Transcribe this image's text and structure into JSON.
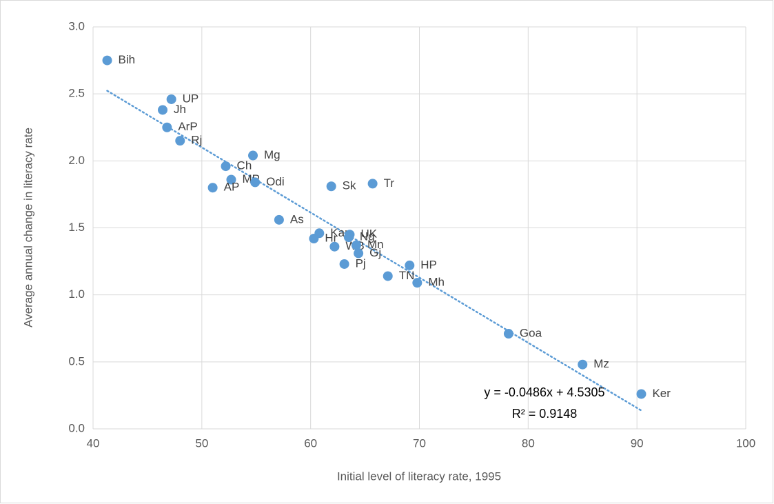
{
  "chart_data": {
    "type": "scatter",
    "x_label": "Initial level of literacy rate, 1995",
    "y_label": "Average annual change in literacy rate",
    "color": "#5b9bd5",
    "grid": true,
    "labels": [
      "Bih",
      "UP",
      "Jh",
      "ArP",
      "Rj",
      "Mg",
      "Ch",
      "MP",
      "Odi",
      "AP",
      "Sk",
      "Tr",
      "As",
      "Kar",
      "Hr",
      "UK",
      "Ng",
      "WB",
      "Mn",
      "Pj",
      "Gj",
      "TN",
      "HP",
      "Mh",
      "Goa",
      "Mz",
      "Ker"
    ],
    "x": [
      41.3,
      47.2,
      46.4,
      46.8,
      48.0,
      54.7,
      52.2,
      52.7,
      54.9,
      51.0,
      61.9,
      65.7,
      57.1,
      60.8,
      60.3,
      63.6,
      63.5,
      62.2,
      64.2,
      63.1,
      64.4,
      67.1,
      69.1,
      69.8,
      78.2,
      85.0,
      90.4
    ],
    "values": [
      2.75,
      2.46,
      2.38,
      2.25,
      2.15,
      2.04,
      1.96,
      1.86,
      1.84,
      1.8,
      1.81,
      1.83,
      1.56,
      1.46,
      1.42,
      1.45,
      1.43,
      1.36,
      1.37,
      1.23,
      1.31,
      1.14,
      1.22,
      1.09,
      0.71,
      0.48,
      0.26
    ],
    "xlim": [
      40,
      100
    ],
    "xticks": [
      40,
      50,
      60,
      70,
      80,
      90,
      100
    ],
    "ylim": [
      0,
      3
    ],
    "yticks": [
      {
        "value": 0,
        "label": "0.0"
      },
      {
        "value": 0.5,
        "label": "0.5"
      },
      {
        "value": 1,
        "label": "1.0"
      },
      {
        "value": 1.5,
        "label": "1.5"
      },
      {
        "value": 2,
        "label": "2.0"
      },
      {
        "value": 2.5,
        "label": "2.5"
      },
      {
        "value": 3,
        "label": "3.0"
      }
    ],
    "trendline": {
      "slope": -0.0486,
      "intercept": 4.5305,
      "equation": "y = -0.0486x + 4.5305",
      "r2": "R² = 0.9148"
    }
  }
}
